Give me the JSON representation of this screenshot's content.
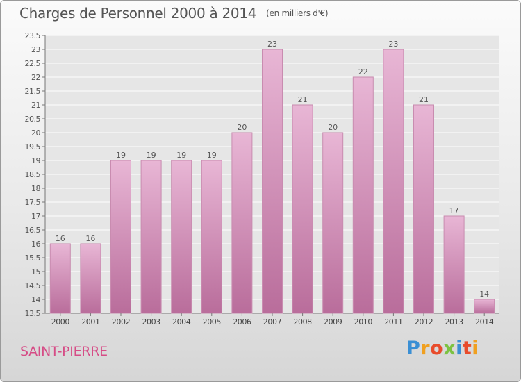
{
  "chart_title": "Charges de Personnel 2000 à 2014",
  "chart_unit": "(en milliers d'€)",
  "location": "SAINT-PIERRE",
  "brand": {
    "letters": [
      "P",
      "r",
      "o",
      "x",
      "i",
      "t",
      "i"
    ],
    "colors": [
      "#3a8fd4",
      "#f0a020",
      "#e84c2c",
      "#7cc242",
      "#3a8fd4",
      "#e84c2c",
      "#f0a020"
    ]
  },
  "colors": {
    "bar_light": "#e8b6d5",
    "bar_dark": "#b96d9b",
    "text": "#555555",
    "accent": "#d64c86"
  },
  "chart_data": {
    "type": "bar",
    "title": "Charges de Personnel 2000 à 2014",
    "subtitle": "(en milliers d'€)",
    "categories": [
      "2000",
      "2001",
      "2002",
      "2003",
      "2004",
      "2005",
      "2006",
      "2007",
      "2008",
      "2009",
      "2010",
      "2011",
      "2012",
      "2013",
      "2014"
    ],
    "values": [
      16,
      16,
      19,
      19,
      19,
      19,
      20,
      23,
      21,
      20,
      22,
      23,
      21,
      17,
      14
    ],
    "ylim": [
      13.5,
      23.5
    ],
    "yticks": [
      "13.5",
      "14",
      "14.5",
      "15",
      "15.5",
      "16",
      "16.5",
      "17",
      "17.5",
      "18",
      "18.5",
      "19",
      "19.5",
      "20",
      "20.5",
      "21",
      "21.5",
      "22",
      "22.5",
      "23",
      "23.5"
    ],
    "grid": true,
    "legend": false
  }
}
